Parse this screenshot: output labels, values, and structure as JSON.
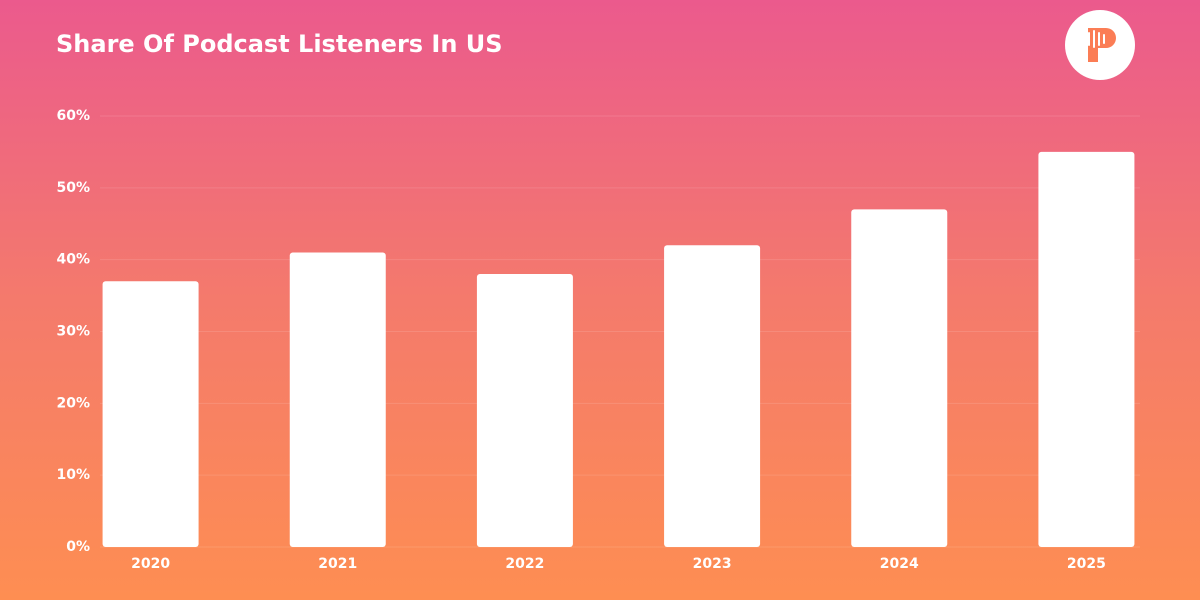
{
  "chart_data": {
    "type": "bar",
    "title": "Share Of Podcast Listeners In US",
    "categories": [
      "2020",
      "2021",
      "2022",
      "2023",
      "2024",
      "2025"
    ],
    "values": [
      37,
      41,
      38,
      42,
      47,
      55
    ],
    "color": "#ffffff",
    "ylim": [
      0,
      60
    ],
    "yticks": [
      {
        "value": 0,
        "label": "0%"
      },
      {
        "value": 10,
        "label": "10%"
      },
      {
        "value": 20,
        "label": "20%"
      },
      {
        "value": 30,
        "label": "30%"
      },
      {
        "value": 40,
        "label": "40%"
      },
      {
        "value": 50,
        "label": "50%"
      },
      {
        "value": 60,
        "label": "60%"
      }
    ],
    "grid": true
  }
}
